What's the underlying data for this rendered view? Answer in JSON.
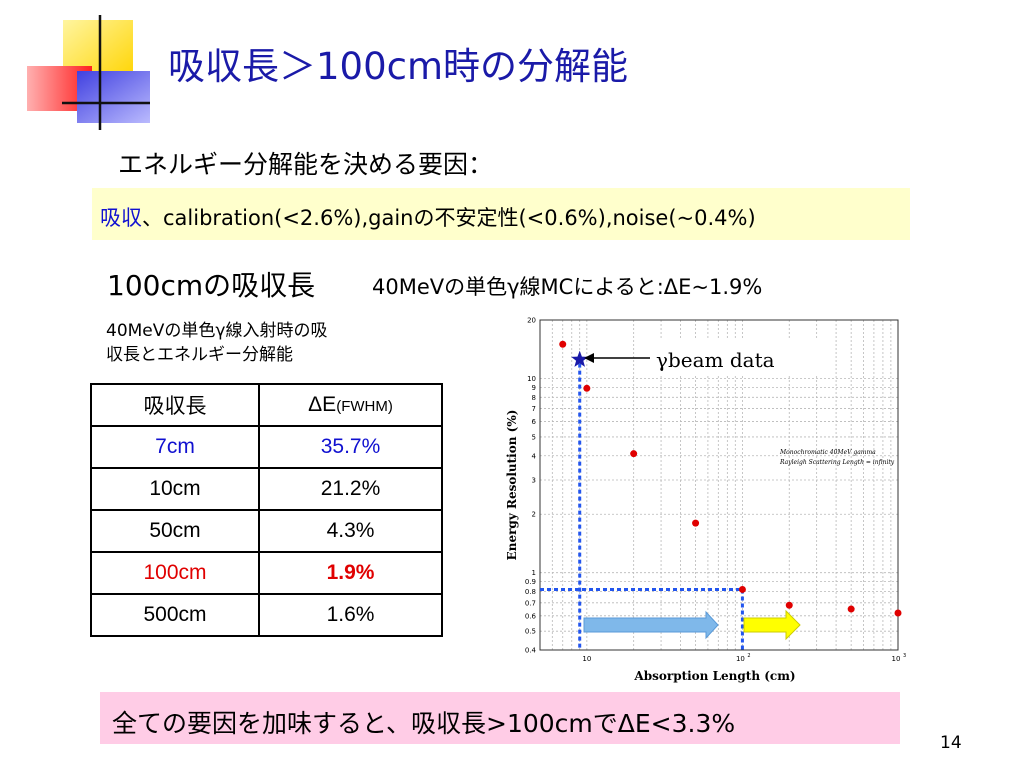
{
  "title": "吸収長＞100cm時の分解能",
  "subtitle": "エネルギー分解能を決める要因：",
  "factors": {
    "highlight": "吸収",
    "rest": "、calibration(<2.6%),gainの不安定性(<0.6%),noise(~0.4%)"
  },
  "heading_100cm": "100cmの吸収長",
  "mc_note": "40MeVの単色γ線MCによると:ΔE~1.9%",
  "table_caption_line1": "40MeVの単色γ線入射時の吸",
  "table_caption_line2": "収長とエネルギー分解能",
  "table": {
    "headers": [
      "吸収長",
      "ΔE",
      "(FWHM)"
    ],
    "rows": [
      [
        "7cm",
        "35.7%"
      ],
      [
        "10cm",
        "21.2%"
      ],
      [
        "50cm",
        "4.3%"
      ],
      [
        "100cm",
        "1.9%"
      ],
      [
        "500cm",
        "1.6%"
      ]
    ]
  },
  "conclusion": "全ての要因を加味すると、吸収長>100cmでΔE<3.3%",
  "page_number": "14",
  "chart_data": {
    "type": "scatter",
    "xlabel": "Absorption Length (cm)",
    "ylabel": "Energy Resolution (%)",
    "x_scale": "log",
    "y_scale": "log",
    "xlim": [
      5,
      1000
    ],
    "ylim": [
      0.4,
      20
    ],
    "x_tick_labels": [
      "10",
      "10",
      "2",
      "10",
      "3"
    ],
    "y_tick_labels": [
      "20",
      "10",
      "9",
      "8",
      "7",
      "6",
      "5",
      "4",
      "3",
      "2",
      "1",
      "0.9",
      "0.8",
      "0.7",
      "0.6",
      "0.5",
      "0.4"
    ],
    "grid": true,
    "legend_text_line1": "Monochromatic 40MeV gamma",
    "legend_text_line2": "Rayleigh Scattering Length = infinity",
    "beam_label": "γbeam data",
    "series": [
      {
        "x": [
          7,
          10,
          20,
          50,
          100,
          200,
          500,
          1000
        ],
        "y": [
          15.0,
          8.9,
          4.1,
          1.8,
          0.82,
          0.68,
          0.65,
          0.62
        ]
      }
    ],
    "beam_point": {
      "x": 9,
      "y": 12.5
    },
    "guide_x": [
      9,
      100
    ],
    "guide_y": 0.82,
    "colors": {
      "points": "#e00000",
      "star": "#1a1aa8",
      "guides": "#2255ee",
      "arrow_blue": "#7fb8ea",
      "arrow_yellow": "#ffff00"
    }
  }
}
